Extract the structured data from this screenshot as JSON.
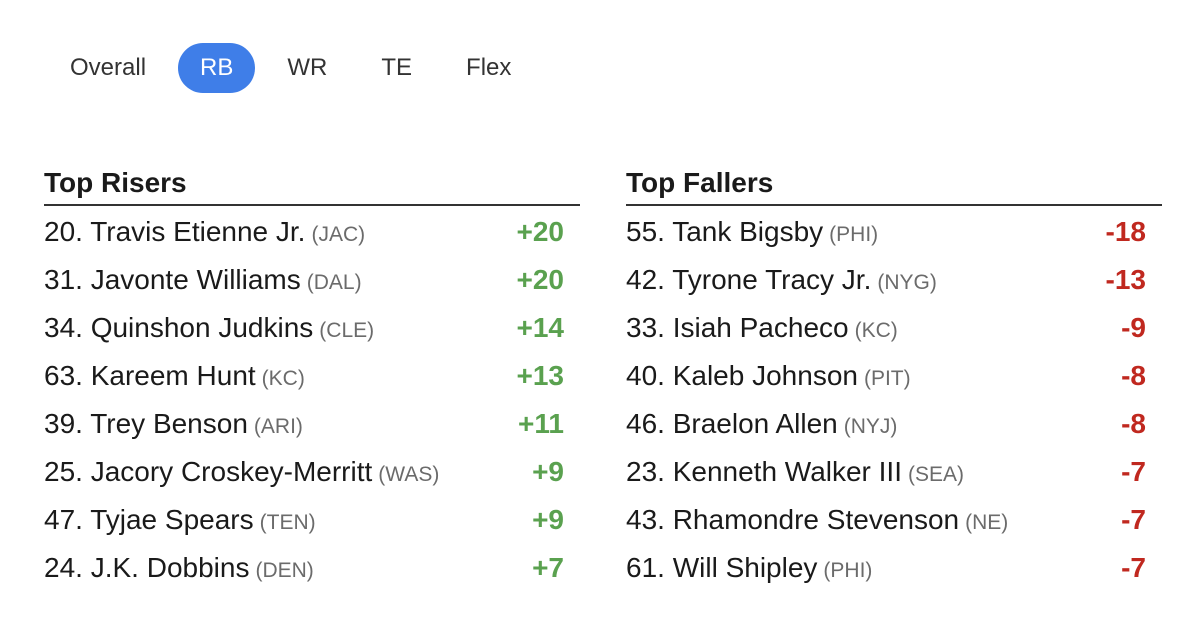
{
  "tabs": [
    {
      "label": "Overall",
      "active": false
    },
    {
      "label": "RB",
      "active": true
    },
    {
      "label": "WR",
      "active": false
    },
    {
      "label": "TE",
      "active": false
    },
    {
      "label": "Flex",
      "active": false
    }
  ],
  "colors": {
    "active_tab": "#3f7ee8",
    "rise": "#5aa14f",
    "fall": "#c0281f"
  },
  "risers": {
    "title": "Top Risers",
    "rows": [
      {
        "name": "20. Travis Etienne Jr.",
        "team": "(JAC)",
        "change": "+20"
      },
      {
        "name": "31. Javonte Williams",
        "team": "(DAL)",
        "change": "+20"
      },
      {
        "name": "34. Quinshon Judkins",
        "team": "(CLE)",
        "change": "+14"
      },
      {
        "name": "63. Kareem Hunt",
        "team": "(KC)",
        "change": "+13"
      },
      {
        "name": "39. Trey Benson",
        "team": "(ARI)",
        "change": "+11"
      },
      {
        "name": "25. Jacory Croskey-Merritt",
        "team": "(WAS)",
        "change": "+9"
      },
      {
        "name": "47. Tyjae Spears",
        "team": "(TEN)",
        "change": "+9"
      },
      {
        "name": "24. J.K. Dobbins",
        "team": "(DEN)",
        "change": "+7"
      }
    ]
  },
  "fallers": {
    "title": "Top Fallers",
    "rows": [
      {
        "name": "55. Tank Bigsby",
        "team": "(PHI)",
        "change": "-18"
      },
      {
        "name": "42. Tyrone Tracy Jr.",
        "team": "(NYG)",
        "change": "-13"
      },
      {
        "name": "33. Isiah Pacheco",
        "team": "(KC)",
        "change": "-9"
      },
      {
        "name": "40. Kaleb Johnson",
        "team": "(PIT)",
        "change": "-8"
      },
      {
        "name": "46. Braelon Allen",
        "team": "(NYJ)",
        "change": "-8"
      },
      {
        "name": "23. Kenneth Walker III",
        "team": "(SEA)",
        "change": "-7"
      },
      {
        "name": "43. Rhamondre Stevenson",
        "team": "(NE)",
        "change": "-7"
      },
      {
        "name": "61. Will Shipley",
        "team": "(PHI)",
        "change": "-7"
      }
    ]
  }
}
